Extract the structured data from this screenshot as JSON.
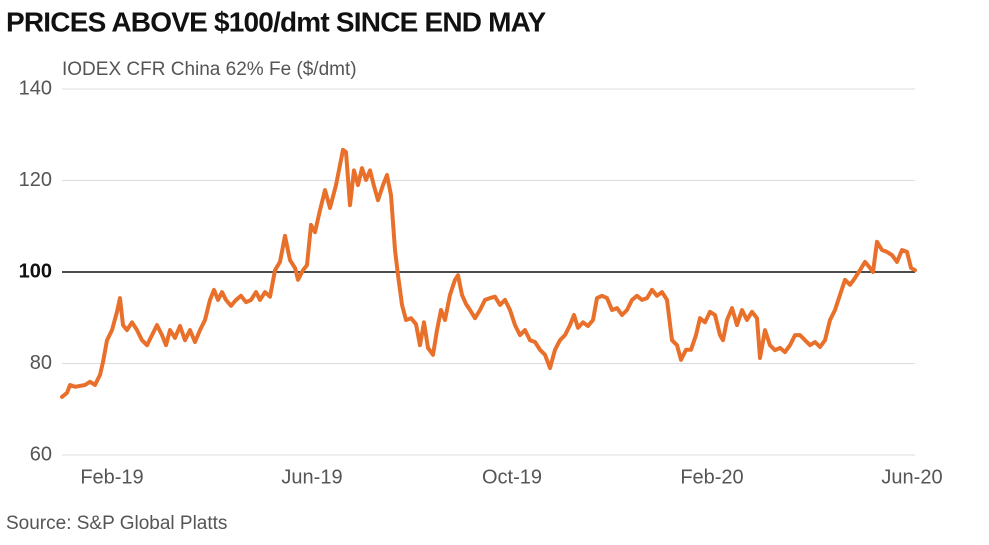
{
  "chart_data": {
    "type": "line",
    "title": "PRICES ABOVE $100/dmt SINCE END MAY",
    "subtitle": "IODEX CFR China 62% Fe ($/dmt)",
    "source": "Source: S&P Global Platts",
    "color": "#e8702a",
    "x": [
      0,
      0.1,
      0.16,
      0.26,
      0.46,
      0.56,
      0.66,
      0.76,
      0.82,
      0.9,
      1.0,
      1.1,
      1.16,
      1.22,
      1.3,
      1.4,
      1.5,
      1.6,
      1.7,
      1.8,
      1.9,
      2.0,
      2.08,
      2.16,
      2.26,
      2.36,
      2.46,
      2.56,
      2.66,
      2.76,
      2.86,
      2.96,
      3.04,
      3.12,
      3.2,
      3.28,
      3.38,
      3.48,
      3.58,
      3.68,
      3.78,
      3.88,
      3.96,
      4.06,
      4.16,
      4.26,
      4.36,
      4.46,
      4.56,
      4.66,
      4.72,
      4.82,
      4.9,
      4.98,
      5.06,
      5.16,
      5.26,
      5.36,
      5.48,
      5.62,
      5.68,
      5.76,
      5.84,
      5.92,
      6.0,
      6.08,
      6.16,
      6.24,
      6.32,
      6.42,
      6.5,
      6.58,
      6.66,
      6.72,
      6.8,
      6.88,
      6.98,
      7.08,
      7.16,
      7.24,
      7.32,
      7.42,
      7.5,
      7.58,
      7.66,
      7.76,
      7.86,
      7.92,
      8.0,
      8.08,
      8.16,
      8.26,
      8.36,
      8.46,
      8.56,
      8.66,
      8.76,
      8.86,
      8.96,
      9.06,
      9.16,
      9.26,
      9.36,
      9.46,
      9.56,
      9.66,
      9.76,
      9.86,
      9.96,
      10.06,
      10.16,
      10.24,
      10.32,
      10.42,
      10.52,
      10.62,
      10.7,
      10.8,
      10.9,
      11.0,
      11.1,
      11.2,
      11.3,
      11.4,
      11.5,
      11.6,
      11.7,
      11.8,
      11.9,
      12.0,
      12.1,
      12.2,
      12.3,
      12.38,
      12.48,
      12.58,
      12.68,
      12.76,
      12.86,
      12.96,
      13.06,
      13.16,
      13.22,
      13.3,
      13.4,
      13.5,
      13.6,
      13.7,
      13.8,
      13.9,
      13.96,
      14.06,
      14.16,
      14.26,
      14.36,
      14.46,
      14.56,
      14.66,
      14.76,
      14.86,
      14.96,
      15.06,
      15.16,
      15.26,
      15.36,
      15.46,
      15.56,
      15.66,
      15.76,
      15.86,
      15.96,
      16.06,
      16.16,
      16.22,
      16.3,
      16.4,
      16.5,
      16.6,
      16.7,
      16.8,
      16.9,
      16.98,
      17.06
    ],
    "values": [
      72.7,
      73.6,
      75.3,
      74.9,
      75.3,
      76,
      75.3,
      77.5,
      80.3,
      85.1,
      87.3,
      91.3,
      94.3,
      88.4,
      87.3,
      89,
      87.3,
      85.1,
      84,
      86.2,
      88.4,
      86.2,
      84,
      87.3,
      85.6,
      88.2,
      85.1,
      87.3,
      84.7,
      87.3,
      89.5,
      93.9,
      96.1,
      93.9,
      95.6,
      93.9,
      92.6,
      93.9,
      94.8,
      93.4,
      93.9,
      95.6,
      93.9,
      95.6,
      94.6,
      100.4,
      102.2,
      107.9,
      102.6,
      100.9,
      98.3,
      100.4,
      101.5,
      110.3,
      108.7,
      113.5,
      117.9,
      114,
      119,
      126.7,
      126.2,
      114.6,
      122.2,
      119,
      122.7,
      120.1,
      122.2,
      118.8,
      115.7,
      119,
      121.2,
      116.8,
      104.8,
      99.3,
      92.8,
      89.5,
      89.9,
      88.6,
      84,
      89,
      83.4,
      81.9,
      87.3,
      91.7,
      89.5,
      95,
      98.3,
      99.3,
      95,
      93,
      91.7,
      89.9,
      91.7,
      93.9,
      94.3,
      94.6,
      92.8,
      93.9,
      91.7,
      88.4,
      86.2,
      87.3,
      85.1,
      84.7,
      83,
      81.9,
      79,
      83,
      85.1,
      86.2,
      88.4,
      90.6,
      87.8,
      89,
      88.2,
      89.5,
      94.3,
      94.8,
      94.3,
      91.7,
      92.1,
      90.6,
      91.7,
      93.9,
      94.8,
      93.9,
      94.3,
      96.1,
      94.8,
      95.6,
      93.9,
      85.1,
      84,
      80.8,
      83,
      83,
      86.2,
      89.9,
      89,
      91.3,
      90.6,
      86.2,
      85.1,
      89.5,
      92.1,
      88.4,
      91.7,
      89.5,
      91.3,
      89.9,
      81.2,
      87.3,
      84,
      82.9,
      83.4,
      82.5,
      84,
      86.2,
      86.2,
      85.1,
      84,
      84.7,
      83.6,
      85.1,
      89.5,
      91.7,
      95,
      98.3,
      97.2,
      98.7,
      100.4,
      102.2,
      100.9,
      100,
      106.6,
      104.8,
      104.4,
      103.7,
      102.2,
      104.8,
      104.4,
      100.9,
      100.4
    ],
    "xlim": [
      0,
      17.06
    ],
    "xticks": [
      {
        "value": 1,
        "label": "Feb-19"
      },
      {
        "value": 5,
        "label": "Jun-19"
      },
      {
        "value": 9,
        "label": "Oct-19"
      },
      {
        "value": 13,
        "label": "Feb-20"
      },
      {
        "value": 17,
        "label": "Jun-20"
      }
    ],
    "ylim": [
      60,
      140
    ],
    "yticks": [
      60,
      80,
      100,
      120,
      140
    ],
    "reference_line": 100,
    "grid": true
  }
}
